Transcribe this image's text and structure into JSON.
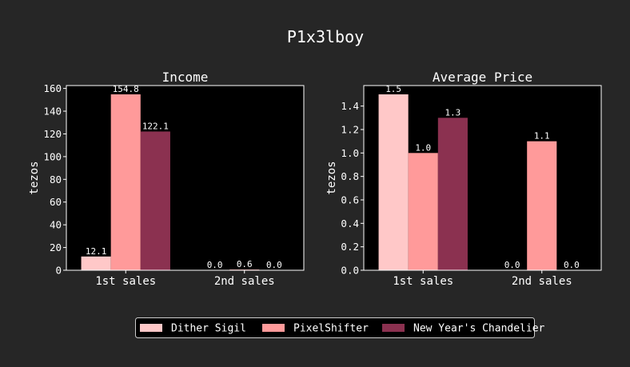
{
  "figure": {
    "title": "P1x3lboy",
    "background": "#262626",
    "plot_background": "#000000",
    "text_color": "#ffffff"
  },
  "legend": {
    "placement": "bottom-center",
    "entries": [
      {
        "name": "Dither Sigil",
        "color": "#ffc8c8"
      },
      {
        "name": "PixelShifter",
        "color": "#ff9a9a"
      },
      {
        "name": "New Year's Chandelier",
        "color": "#8b3150"
      }
    ]
  },
  "chart_data": [
    {
      "type": "bar",
      "title": "Income",
      "xlabel": "",
      "ylabel": "tezos",
      "categories": [
        "1st sales",
        "2nd sales"
      ],
      "ylim": [
        0,
        162.54
      ],
      "yticks": [
        0,
        20,
        40,
        60,
        80,
        100,
        120,
        140,
        160
      ],
      "tick_labels": [
        "0",
        "20",
        "40",
        "60",
        "80",
        "100",
        "120",
        "140",
        "160"
      ],
      "series": [
        {
          "name": "Dither Sigil",
          "color": "#ffc8c8",
          "values": [
            12.1,
            0.0
          ],
          "labels": [
            "12.1",
            "0.0"
          ]
        },
        {
          "name": "PixelShifter",
          "color": "#ff9a9a",
          "values": [
            154.8,
            0.6
          ],
          "labels": [
            "154.8",
            "0.6"
          ]
        },
        {
          "name": "New Year's Chandelier",
          "color": "#8b3150",
          "values": [
            122.1,
            0.0
          ],
          "labels": [
            "122.1",
            "0.0"
          ]
        }
      ]
    },
    {
      "type": "bar",
      "title": "Average Price",
      "xlabel": "",
      "ylabel": "tezos",
      "categories": [
        "1st sales",
        "2nd sales"
      ],
      "ylim": [
        0,
        1.575
      ],
      "yticks": [
        0,
        0.2,
        0.4,
        0.6,
        0.8,
        1.0,
        1.2,
        1.4
      ],
      "tick_labels": [
        "0.0",
        "0.2",
        "0.4",
        "0.6",
        "0.8",
        "1.0",
        "1.2",
        "1.4"
      ],
      "series": [
        {
          "name": "Dither Sigil",
          "color": "#ffc8c8",
          "values": [
            1.5,
            0.0
          ],
          "labels": [
            "1.5",
            "0.0"
          ]
        },
        {
          "name": "PixelShifter",
          "color": "#ff9a9a",
          "values": [
            1.0,
            1.1
          ],
          "labels": [
            "1.0",
            "1.1"
          ]
        },
        {
          "name": "New Year's Chandelier",
          "color": "#8b3150",
          "values": [
            1.3,
            0.0
          ],
          "labels": [
            "1.3",
            "0.0"
          ]
        }
      ]
    }
  ]
}
